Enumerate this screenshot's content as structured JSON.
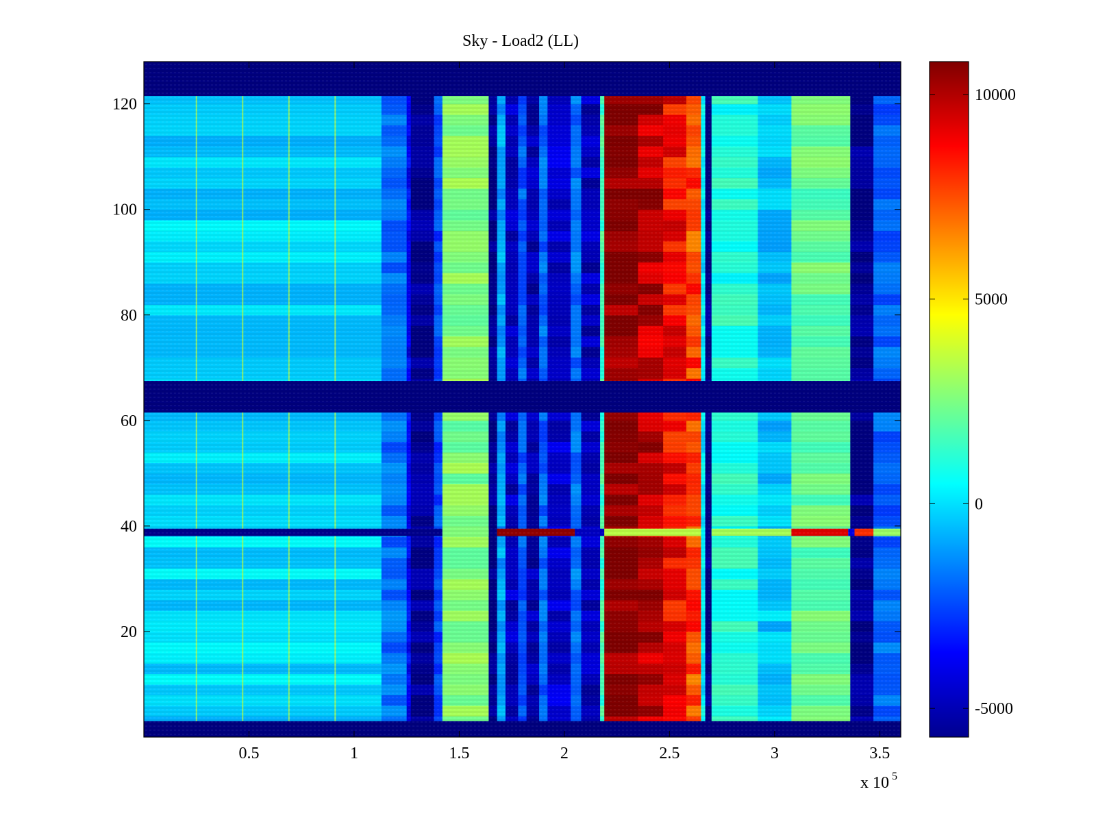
{
  "chart_data": {
    "type": "heatmap",
    "title": "Sky - Load2 (LL)",
    "xlabel": "",
    "ylabel": "",
    "x_multiplier_label": "x 10",
    "x_multiplier_exponent": "5",
    "xlim": [
      0,
      3.6
    ],
    "ylim": [
      0,
      128
    ],
    "x_ticks": [
      0.5,
      1,
      1.5,
      2,
      2.5,
      3,
      3.5
    ],
    "x_tick_labels": [
      "0.5",
      "1",
      "1.5",
      "2",
      "2.5",
      "3",
      "3.5"
    ],
    "y_ticks": [
      20,
      40,
      60,
      80,
      100,
      120
    ],
    "y_tick_labels": [
      "20",
      "40",
      "60",
      "80",
      "100",
      "120"
    ],
    "colormap": "jet",
    "colorbar": {
      "clim": [
        -5700,
        10800
      ],
      "ticks": [
        -5000,
        0,
        5000,
        10000
      ],
      "tick_labels": [
        "-5000",
        "0",
        "5000",
        "10000"
      ]
    },
    "masked_rows": [
      {
        "y_from": 121.5,
        "y_to": 128,
        "value": -5700
      },
      {
        "y_from": 61.5,
        "y_to": 67.5,
        "value": -5700
      },
      {
        "y_from": 0,
        "y_to": 3,
        "value": -5700
      }
    ],
    "column_bands": [
      {
        "x_from": 0.0,
        "x_to": 1.13,
        "value": -150
      },
      {
        "x_from": 1.13,
        "x_to": 1.25,
        "value": -1800
      },
      {
        "x_from": 1.25,
        "x_to": 1.27,
        "value": -3800
      },
      {
        "x_from": 1.27,
        "x_to": 1.38,
        "value": -5400
      },
      {
        "x_from": 1.38,
        "x_to": 1.42,
        "value": -2500
      },
      {
        "x_from": 1.42,
        "x_to": 1.64,
        "value": 2600
      },
      {
        "x_from": 1.64,
        "x_to": 1.68,
        "value": -5600
      },
      {
        "x_from": 1.68,
        "x_to": 1.72,
        "value": -1000
      },
      {
        "x_from": 1.72,
        "x_to": 1.78,
        "value": -4600
      },
      {
        "x_from": 1.78,
        "x_to": 1.82,
        "value": -2200
      },
      {
        "x_from": 1.82,
        "x_to": 1.88,
        "value": -4900
      },
      {
        "x_from": 1.88,
        "x_to": 1.92,
        "value": -2000
      },
      {
        "x_from": 1.92,
        "x_to": 2.03,
        "value": -4400
      },
      {
        "x_from": 2.03,
        "x_to": 2.08,
        "value": -1800
      },
      {
        "x_from": 2.08,
        "x_to": 2.17,
        "value": -4700
      },
      {
        "x_from": 2.17,
        "x_to": 2.19,
        "value": 1500
      },
      {
        "x_from": 2.19,
        "x_to": 2.35,
        "value": 10800
      },
      {
        "x_from": 2.35,
        "x_to": 2.47,
        "value": 9800
      },
      {
        "x_from": 2.47,
        "x_to": 2.58,
        "value": 8700
      },
      {
        "x_from": 2.58,
        "x_to": 2.65,
        "value": 7600
      },
      {
        "x_from": 2.65,
        "x_to": 2.67,
        "value": 200
      },
      {
        "x_from": 2.67,
        "x_to": 2.7,
        "value": -5600
      },
      {
        "x_from": 2.7,
        "x_to": 2.92,
        "value": 1000
      },
      {
        "x_from": 2.92,
        "x_to": 3.08,
        "value": -400
      },
      {
        "x_from": 3.08,
        "x_to": 3.36,
        "value": 2100
      },
      {
        "x_from": 3.36,
        "x_to": 3.47,
        "value": -5500
      },
      {
        "x_from": 3.47,
        "x_to": 3.6,
        "value": -2000
      }
    ],
    "highlight_row": {
      "y": 38.8,
      "segments": [
        {
          "x_from": 0.0,
          "x_to": 1.42,
          "value": -5500
        },
        {
          "x_from": 1.42,
          "x_to": 1.64,
          "value": 2600
        },
        {
          "x_from": 1.68,
          "x_to": 2.05,
          "value": 10500
        },
        {
          "x_from": 2.05,
          "x_to": 2.19,
          "value": -4600
        },
        {
          "x_from": 2.19,
          "x_to": 2.65,
          "value": 3500
        },
        {
          "x_from": 2.7,
          "x_to": 3.08,
          "value": 3200
        },
        {
          "x_from": 3.08,
          "x_to": 3.35,
          "value": 9200
        },
        {
          "x_from": 3.35,
          "x_to": 3.38,
          "value": -4000
        },
        {
          "x_from": 3.38,
          "x_to": 3.47,
          "value": 8000
        },
        {
          "x_from": 3.47,
          "x_to": 3.6,
          "value": 3000
        }
      ]
    },
    "spike_columns": [
      0.25,
      0.47,
      0.69,
      0.91
    ]
  }
}
